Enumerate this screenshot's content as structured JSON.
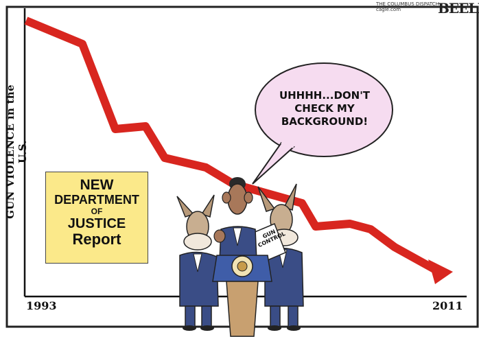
{
  "credit": {
    "paper": "THE COLUMBUS DISPATCH",
    "site": "cagle.com",
    "signature": "BEELER"
  },
  "axis": {
    "ylabel": "GUN VIOLENCE in the U.S.",
    "x_start": "1993",
    "x_end": "2011"
  },
  "report": {
    "line1": "NEW",
    "line2": "DEPARTMENT",
    "line3": "OF",
    "line4": "JUSTICE",
    "line5": "Report"
  },
  "speech_bubble": {
    "line1": "UHHHH...DON'T",
    "line2": "CHECK MY",
    "line3": "BACKGROUND!"
  },
  "sign": {
    "line1": "GUN",
    "line2": "CONTROL"
  },
  "colors": {
    "trend_line": "#d8261f",
    "report_box": "#fbe98a",
    "bubble": "#f6dcf0",
    "podium": "#c8a070",
    "suit": "#3a4d86"
  }
}
